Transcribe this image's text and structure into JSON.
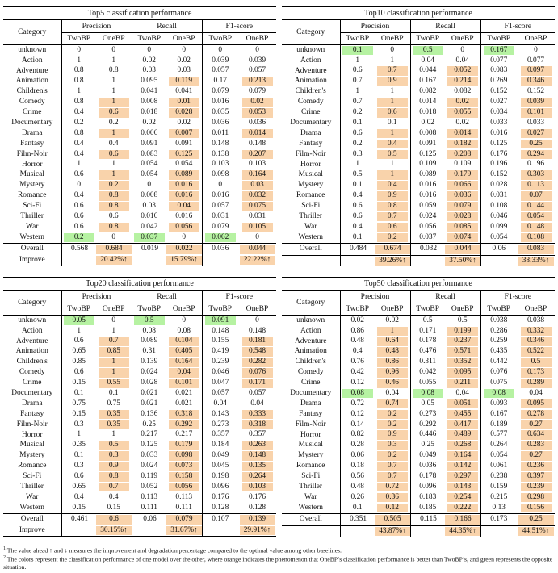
{
  "labels": {
    "category": "Category",
    "precision": "Precision",
    "recall": "Recall",
    "f1": "F1-score",
    "twobp": "TwoBP",
    "onebp": "OneBP",
    "overall": "Overall",
    "improve": "Improve"
  },
  "colors": {
    "orange": "#f9d3ab",
    "green": "#b6f2a2"
  },
  "categories": [
    "unknown",
    "Action",
    "Adventure",
    "Animation",
    "Children's",
    "Comedy",
    "Crime",
    "Documentary",
    "Drama",
    "Fantasy",
    "Film-Noir",
    "Horror",
    "Musical",
    "Mystery",
    "Romance",
    "Sci-Fi",
    "Thriller",
    "War",
    "Western"
  ],
  "tables": [
    {
      "title": "Top5 classification performance",
      "rows": [
        [
          "0",
          "0",
          "0",
          "0",
          "0",
          "0"
        ],
        [
          "1",
          "1",
          "0.02",
          "0.02",
          "0.039",
          "0.039"
        ],
        [
          "0.8",
          "0.8",
          "0.03",
          "0.03",
          "0.057",
          "0.057"
        ],
        [
          "0.8",
          "1",
          "0.095",
          "0.119",
          "0.17",
          "0.213"
        ],
        [
          "1",
          "1",
          "0.041",
          "0.041",
          "0.079",
          "0.079"
        ],
        [
          "0.8",
          "1",
          "0.008",
          "0.01",
          "0.016",
          "0.02"
        ],
        [
          "0.4",
          "0.6",
          "0.018",
          "0.028",
          "0.035",
          "0.053"
        ],
        [
          "0.2",
          "0.2",
          "0.02",
          "0.02",
          "0.036",
          "0.036"
        ],
        [
          "0.8",
          "1",
          "0.006",
          "0.007",
          "0.011",
          "0.014"
        ],
        [
          "0.4",
          "0.4",
          "0.091",
          "0.091",
          "0.148",
          "0.148"
        ],
        [
          "0.4",
          "0.6",
          "0.083",
          "0.125",
          "0.138",
          "0.207"
        ],
        [
          "1",
          "1",
          "0.054",
          "0.054",
          "0.103",
          "0.103"
        ],
        [
          "0.6",
          "1",
          "0.054",
          "0.089",
          "0.098",
          "0.164"
        ],
        [
          "0",
          "0.2",
          "0",
          "0.016",
          "0",
          "0.03"
        ],
        [
          "0.4",
          "0.8",
          "0.008",
          "0.016",
          "0.016",
          "0.032"
        ],
        [
          "0.6",
          "0.8",
          "0.03",
          "0.04",
          "0.057",
          "0.075"
        ],
        [
          "0.6",
          "0.6",
          "0.016",
          "0.016",
          "0.031",
          "0.031"
        ],
        [
          "0.6",
          "0.8",
          "0.042",
          "0.056",
          "0.079",
          "0.105"
        ],
        [
          "0.2",
          "0",
          "0.037",
          "0",
          "0.062",
          "0"
        ]
      ],
      "marks": [
        "......",
        "......",
        "......",
        "...#.#",
        "......",
        ".#.#.#",
        ".#.#.#",
        "......",
        ".#.#.#",
        "......",
        ".#.#.#",
        "......",
        ".#.#.#",
        ".#.#.#",
        ".#.#.#",
        ".#.#.#",
        "......",
        ".#.#.#",
        "g.g.g."
      ],
      "overall": [
        "0.568",
        "0.684",
        "0.019",
        "0.022",
        "0.036",
        "0.044"
      ],
      "improve": [
        "20.42%↑",
        "15.79%↑",
        "22.22%↑"
      ]
    },
    {
      "title": "Top10 classification performance",
      "rows": [
        [
          "0.1",
          "0",
          "0.5",
          "0",
          "0.167",
          "0"
        ],
        [
          "1",
          "1",
          "0.04",
          "0.04",
          "0.077",
          "0.077"
        ],
        [
          "0.6",
          "0.7",
          "0.044",
          "0.052",
          "0.083",
          "0.097"
        ],
        [
          "0.7",
          "0.9",
          "0.167",
          "0.214",
          "0.269",
          "0.346"
        ],
        [
          "1",
          "1",
          "0.082",
          "0.082",
          "0.152",
          "0.152"
        ],
        [
          "0.7",
          "1",
          "0.014",
          "0.02",
          "0.027",
          "0.039"
        ],
        [
          "0.2",
          "0.6",
          "0.018",
          "0.055",
          "0.034",
          "0.101"
        ],
        [
          "0.1",
          "0.1",
          "0.02",
          "0.02",
          "0.033",
          "0.033"
        ],
        [
          "0.6",
          "1",
          "0.008",
          "0.014",
          "0.016",
          "0.027"
        ],
        [
          "0.2",
          "0.4",
          "0.091",
          "0.182",
          "0.125",
          "0.25"
        ],
        [
          "0.3",
          "0.5",
          "0.125",
          "0.208",
          "0.176",
          "0.294"
        ],
        [
          "1",
          "1",
          "0.109",
          "0.109",
          "0.196",
          "0.196"
        ],
        [
          "0.5",
          "1",
          "0.089",
          "0.179",
          "0.152",
          "0.303"
        ],
        [
          "0.1",
          "0.4",
          "0.016",
          "0.066",
          "0.028",
          "0.113"
        ],
        [
          "0.4",
          "0.9",
          "0.016",
          "0.036",
          "0.031",
          "0.07"
        ],
        [
          "0.6",
          "0.8",
          "0.059",
          "0.079",
          "0.108",
          "0.144"
        ],
        [
          "0.6",
          "0.7",
          "0.024",
          "0.028",
          "0.046",
          "0.054"
        ],
        [
          "0.4",
          "0.6",
          "0.056",
          "0.085",
          "0.099",
          "0.148"
        ],
        [
          "0.1",
          "0.2",
          "0.037",
          "0.074",
          "0.054",
          "0.108"
        ]
      ],
      "marks": [
        "g.g.g.",
        "......",
        ".#.#.#",
        ".#.#.#",
        "......",
        ".#.#.#",
        ".#.#.#",
        "......",
        ".#.#.#",
        ".#.#.#",
        ".#.#.#",
        "......",
        ".#.#.#",
        ".#.#.#",
        ".#.#.#",
        ".#.#.#",
        ".#.#.#",
        ".#.#.#",
        ".#.#.#"
      ],
      "overall": [
        "0.484",
        "0.674",
        "0.032",
        "0.044",
        "0.06",
        "0.083"
      ],
      "improve": [
        "39.26%↑",
        "37.50%↑",
        "38.33%↑"
      ]
    },
    {
      "title": "Top20 classification performance",
      "rows": [
        [
          "0.05",
          "0",
          "0.5",
          "0",
          "0.091",
          "0"
        ],
        [
          "1",
          "1",
          "0.08",
          "0.08",
          "0.148",
          "0.148"
        ],
        [
          "0.6",
          "0.7",
          "0.089",
          "0.104",
          "0.155",
          "0.181"
        ],
        [
          "0.65",
          "0.85",
          "0.31",
          "0.405",
          "0.419",
          "0.548"
        ],
        [
          "0.85",
          "1",
          "0.139",
          "0.164",
          "0.239",
          "0.282"
        ],
        [
          "0.6",
          "1",
          "0.024",
          "0.04",
          "0.046",
          "0.076"
        ],
        [
          "0.15",
          "0.55",
          "0.028",
          "0.101",
          "0.047",
          "0.171"
        ],
        [
          "0.1",
          "0.1",
          "0.021",
          "0.021",
          "0.057",
          "0.057"
        ],
        [
          "0.75",
          "0.75",
          "0.021",
          "0.021",
          "0.04",
          "0.04"
        ],
        [
          "0.15",
          "0.35",
          "0.136",
          "0.318",
          "0.143",
          "0.333"
        ],
        [
          "0.3",
          "0.35",
          "0.25",
          "0.292",
          "0.273",
          "0.318"
        ],
        [
          "1",
          "1",
          "0.217",
          "0.217",
          "0.357",
          "0.357"
        ],
        [
          "0.35",
          "0.5",
          "0.125",
          "0.179",
          "0.184",
          "0.263"
        ],
        [
          "0.1",
          "0.3",
          "0.033",
          "0.098",
          "0.049",
          "0.148"
        ],
        [
          "0.3",
          "0.9",
          "0.024",
          "0.073",
          "0.045",
          "0.135"
        ],
        [
          "0.6",
          "0.8",
          "0.119",
          "0.158",
          "0.198",
          "0.264"
        ],
        [
          "0.65",
          "0.7",
          "0.052",
          "0.056",
          "0.096",
          "0.103"
        ],
        [
          "0.4",
          "0.4",
          "0.113",
          "0.113",
          "0.176",
          "0.176"
        ],
        [
          "0.15",
          "0.15",
          "0.111",
          "0.111",
          "0.128",
          "0.128"
        ]
      ],
      "marks": [
        "g.g.g.",
        "......",
        ".#.#.#",
        ".#.#.#",
        ".#.#.#",
        ".#.#.#",
        ".#.#.#",
        "......",
        "......",
        ".#.#.#",
        ".#.#.#",
        "......",
        ".#.#.#",
        ".#.#.#",
        ".#.#.#",
        ".#.#.#",
        ".#.#.#",
        "......",
        "......"
      ],
      "overall": [
        "0.461",
        "0.6",
        "0.06",
        "0.079",
        "0.107",
        "0.139"
      ],
      "improve": [
        "30.15%↑",
        "31.67%↑",
        "29.91%↑"
      ]
    },
    {
      "title": "Top50 classification performance",
      "rows": [
        [
          "0.02",
          "0.02",
          "0.5",
          "0.5",
          "0.038",
          "0.038"
        ],
        [
          "0.86",
          "1",
          "0.171",
          "0.199",
          "0.286",
          "0.332"
        ],
        [
          "0.48",
          "0.64",
          "0.178",
          "0.237",
          "0.259",
          "0.346"
        ],
        [
          "0.4",
          "0.48",
          "0.476",
          "0.571",
          "0.435",
          "0.522"
        ],
        [
          "0.76",
          "0.86",
          "0.311",
          "0.352",
          "0.442",
          "0.5"
        ],
        [
          "0.42",
          "0.96",
          "0.042",
          "0.095",
          "0.076",
          "0.173"
        ],
        [
          "0.12",
          "0.46",
          "0.055",
          "0.211",
          "0.075",
          "0.289"
        ],
        [
          "0.08",
          "0.04",
          "0.08",
          "0.04",
          "0.08",
          "0.04"
        ],
        [
          "0.72",
          "0.74",
          "0.05",
          "0.051",
          "0.093",
          "0.095"
        ],
        [
          "0.12",
          "0.2",
          "0.273",
          "0.455",
          "0.167",
          "0.278"
        ],
        [
          "0.14",
          "0.2",
          "0.292",
          "0.417",
          "0.189",
          "0.27"
        ],
        [
          "0.82",
          "0.9",
          "0.446",
          "0.489",
          "0.577",
          "0.634"
        ],
        [
          "0.28",
          "0.3",
          "0.25",
          "0.268",
          "0.264",
          "0.283"
        ],
        [
          "0.06",
          "0.2",
          "0.049",
          "0.164",
          "0.054",
          "0.27"
        ],
        [
          "0.18",
          "0.7",
          "0.036",
          "0.142",
          "0.061",
          "0.236"
        ],
        [
          "0.56",
          "0.7",
          "0.178",
          "0.297",
          "0.238",
          "0.397"
        ],
        [
          "0.48",
          "0.72",
          "0.096",
          "0.143",
          "0.159",
          "0.239"
        ],
        [
          "0.26",
          "0.36",
          "0.183",
          "0.254",
          "0.215",
          "0.298"
        ],
        [
          "0.1",
          "0.12",
          "0.185",
          "0.222",
          "0.13",
          "0.156"
        ]
      ],
      "marks": [
        "......",
        ".#.#.#",
        ".#.#.#",
        ".#.#.#",
        ".#.#.#",
        ".#.#.#",
        ".#.#.#",
        "g.g.g.",
        ".#.#.#",
        ".#.#.#",
        ".#.#.#",
        ".#.#.#",
        ".#.#.#",
        ".#.#.#",
        ".#.#.#",
        ".#.#.#",
        ".#.#.#",
        ".#.#.#",
        ".#.#.#"
      ],
      "overall": [
        "0.351",
        "0.505",
        "0.115",
        "0.166",
        "0.173",
        "0.25"
      ],
      "improve": [
        "43.87%↑",
        "44.35%↑",
        "44.51%↑"
      ]
    }
  ],
  "footnotes": [
    {
      "mark": "1",
      "text": "The value ahead ↑ and ↓ measures the improvement and degradation percentage compared to the optimal value among other baselines."
    },
    {
      "mark": "2",
      "text": "The colors represent the classification performance of one model over the other, where orange indicates the phenomenon that OneBP’s classification performance is better than TwoBP’s, and green represents the opposite situation."
    }
  ]
}
